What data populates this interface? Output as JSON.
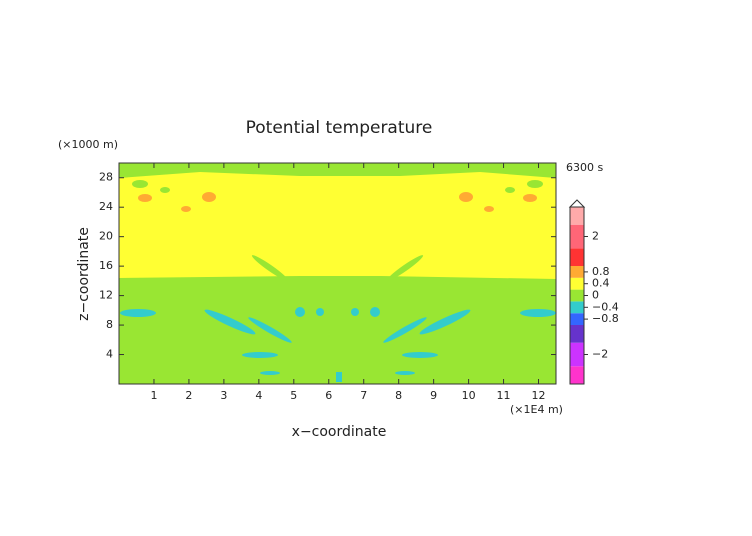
{
  "chart_data": {
    "type": "contour",
    "title": "Potential temperature",
    "xlabel": "x−coordinate",
    "ylabel": "z−coordinate",
    "x_unit": "(×1E4 m)",
    "y_unit": "(×1000 m)",
    "time_label": "6300 s",
    "xlim": [
      0,
      12.5
    ],
    "ylim": [
      0,
      30
    ],
    "xticks": [
      1,
      2,
      3,
      4,
      5,
      6,
      7,
      8,
      9,
      10,
      11,
      12
    ],
    "yticks": [
      4,
      8,
      12,
      16,
      20,
      24,
      28
    ],
    "colorbar": {
      "lim": [
        -3,
        3
      ],
      "levels": [
        -3,
        -2.4,
        -1.6,
        -1,
        -0.6,
        -0.2,
        0.2,
        0.6,
        1,
        1.6,
        2.4,
        3
      ],
      "colors": [
        "#ff33cc",
        "#cc33ff",
        "#6633cc",
        "#3366ff",
        "#33cccc",
        "#99e633",
        "#ffff33",
        "#ffaa33",
        "#ff3333",
        "#ff6677",
        "#ffaaaa"
      ],
      "ticks": [
        {
          "value": -2,
          "label": "−2"
        },
        {
          "value": -0.8,
          "label": "−0.8"
        },
        {
          "value": -0.4,
          "label": "−0.4"
        },
        0,
        0.4,
        0.8,
        2
      ]
    }
  }
}
